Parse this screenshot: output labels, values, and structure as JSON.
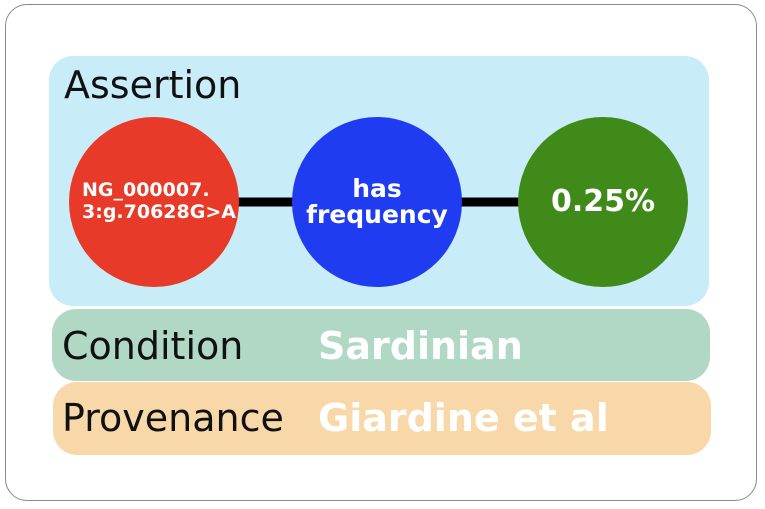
{
  "assertion": {
    "title": "Assertion",
    "subject": {
      "line1": "NG_000007.",
      "line2": "3:g.70628G>A",
      "color": "#e83a28"
    },
    "predicate": {
      "line1": "has",
      "line2": "frequency",
      "color": "#1f3cf0"
    },
    "object": {
      "label": "0.25%",
      "color": "#3f8a18"
    },
    "panel_color": "#c8ecf8"
  },
  "condition": {
    "title": "Condition",
    "value": "Sardinian",
    "panel_color": "#b0d8c4"
  },
  "provenance": {
    "title": "Provenance",
    "value": "Giardine et al",
    "panel_color": "#f8d8a8"
  }
}
